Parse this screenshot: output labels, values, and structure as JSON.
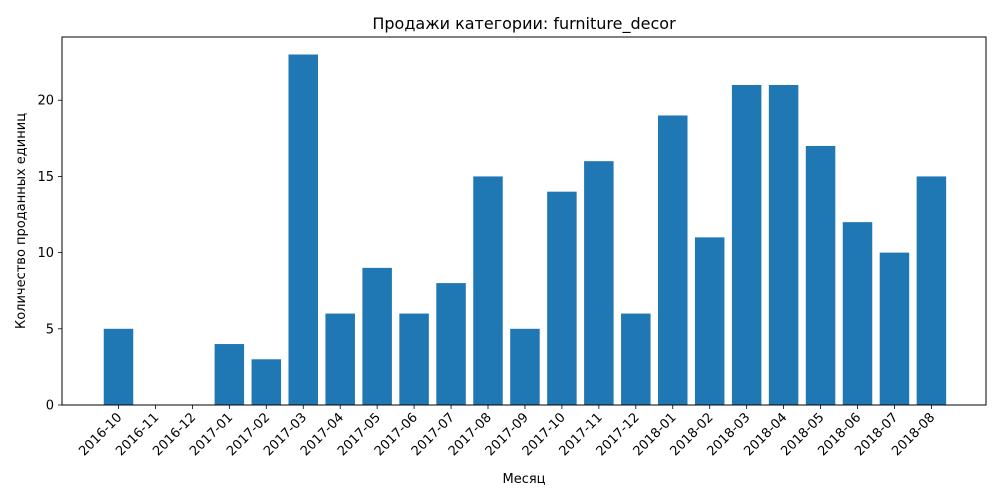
{
  "chart_data": {
    "type": "bar",
    "title": "Продажи категории: furniture_decor",
    "xlabel": "Месяц",
    "ylabel": "Количество проданных единиц",
    "categories": [
      "2016-10",
      "2016-11",
      "2016-12",
      "2017-01",
      "2017-02",
      "2017-03",
      "2017-04",
      "2017-05",
      "2017-06",
      "2017-07",
      "2017-08",
      "2017-09",
      "2017-10",
      "2017-11",
      "2017-12",
      "2018-01",
      "2018-02",
      "2018-03",
      "2018-04",
      "2018-05",
      "2018-06",
      "2018-07",
      "2018-08"
    ],
    "values": [
      5,
      0,
      0,
      4,
      3,
      23,
      6,
      9,
      6,
      8,
      15,
      5,
      14,
      16,
      6,
      19,
      11,
      21,
      21,
      17,
      12,
      10,
      15
    ],
    "ylim": [
      0,
      24.15
    ],
    "yticks": [
      0,
      5,
      10,
      15,
      20
    ],
    "grid": false,
    "bar_color": "#1f77b4"
  }
}
